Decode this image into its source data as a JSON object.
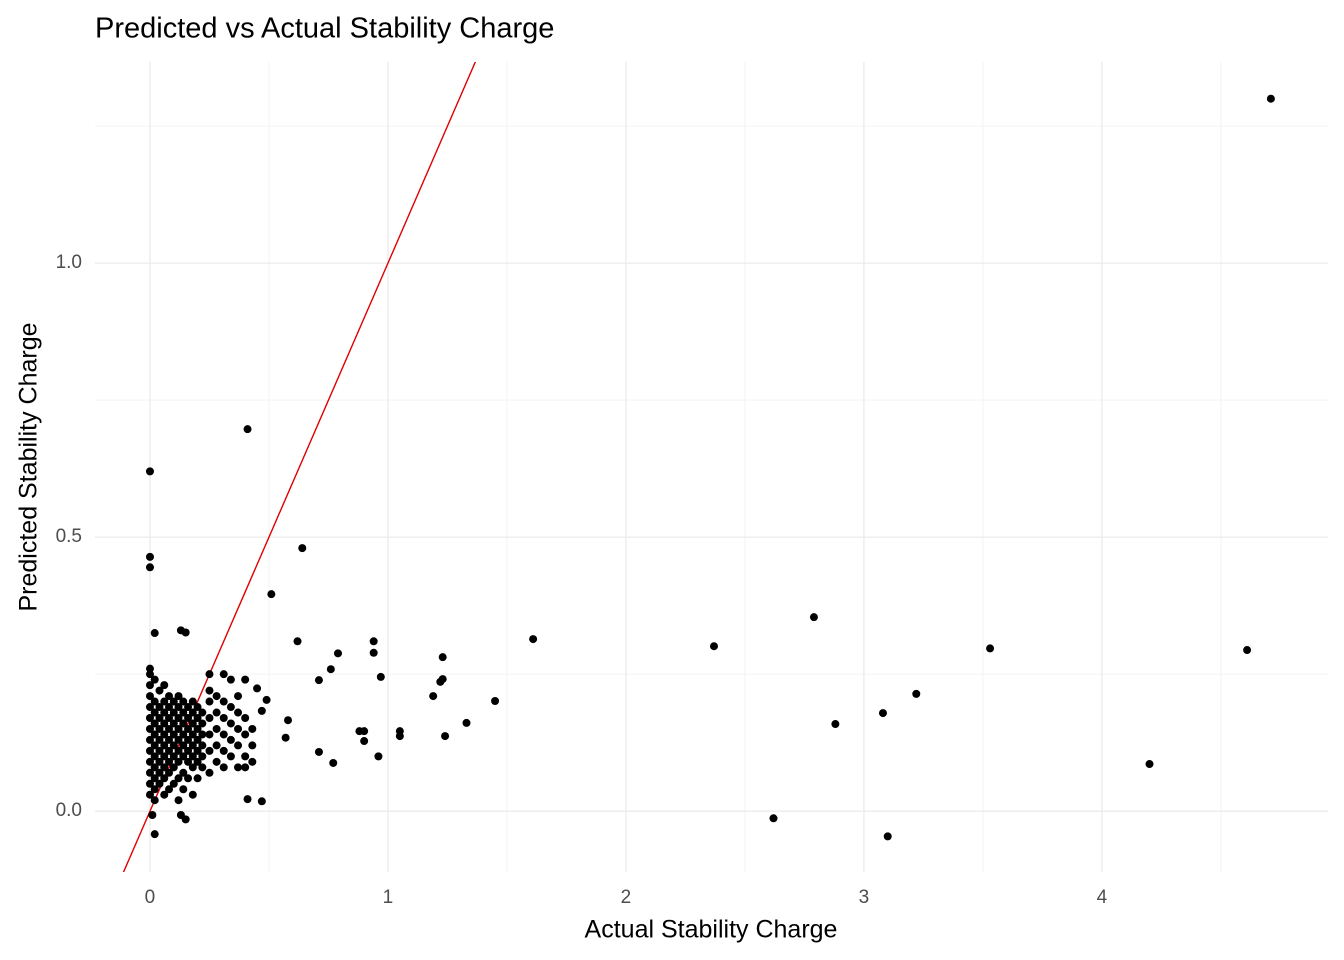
{
  "chart_data": {
    "type": "scatter",
    "title": "Predicted vs Actual Stability Charge",
    "x_label": "Actual Stability Charge",
    "y_label": "Predicted Stability Charge",
    "color": "#000000",
    "grid": true,
    "xlim": [
      -0.231,
      4.95
    ],
    "ylim": [
      -0.111,
      1.367
    ],
    "xticks": [
      0,
      1,
      2,
      3,
      4
    ],
    "yticks": [
      {
        "value": 0,
        "label": "0.0"
      },
      0.5,
      {
        "value": 1,
        "label": "1.0"
      }
    ],
    "x_minor_ticks": [
      0.5,
      1.5,
      2.5,
      3.5,
      4.5
    ],
    "y_minor_ticks": [
      0.25,
      0.75,
      1.25
    ],
    "reference_line": {
      "slope": 1,
      "intercept": 0,
      "color": "#e00000"
    },
    "x": [
      4.71,
      0.41,
      0,
      0,
      0,
      0.64,
      0.51,
      1.61,
      0.62,
      0.94,
      0.94,
      2.79,
      2.37,
      3.53,
      4.61,
      1.23,
      0.79,
      0.76,
      0.71,
      0.97,
      1.23,
      1.22,
      1.19,
      1.45,
      3.22,
      3.08,
      2.88,
      1.33,
      1.05,
      1.05,
      1.24,
      0.88,
      0.9,
      0.9,
      0.96,
      0.77,
      0.71,
      0.57,
      0.58,
      0.49,
      0.47,
      0.45,
      0.47,
      0.41,
      4.2,
      2.62,
      3.1,
      0.02,
      0.01,
      0.13,
      0.15,
      0.02,
      0.13,
      0.15,
      0,
      0,
      0,
      0,
      0,
      0,
      0,
      0,
      0,
      0,
      0,
      0,
      0,
      0.02,
      0.02,
      0.02,
      0.02,
      0.02,
      0.02,
      0.02,
      0.02,
      0.02,
      0.02,
      0.02,
      0.04,
      0.04,
      0.04,
      0.04,
      0.04,
      0.04,
      0.04,
      0.04,
      0.04,
      0.06,
      0.06,
      0.06,
      0.06,
      0.06,
      0.06,
      0.06,
      0.06,
      0.06,
      0.06,
      0.08,
      0.08,
      0.08,
      0.08,
      0.08,
      0.08,
      0.08,
      0.08,
      0.08,
      0.1,
      0.1,
      0.1,
      0.1,
      0.1,
      0.1,
      0.1,
      0.1,
      0.12,
      0.12,
      0.12,
      0.12,
      0.12,
      0.12,
      0.12,
      0.12,
      0.12,
      0.14,
      0.14,
      0.14,
      0.14,
      0.14,
      0.14,
      0.14,
      0.14,
      0.16,
      0.16,
      0.16,
      0.16,
      0.16,
      0.16,
      0.16,
      0.18,
      0.18,
      0.18,
      0.18,
      0.18,
      0.18,
      0.18,
      0.18,
      0.2,
      0.2,
      0.2,
      0.2,
      0.2,
      0.2,
      0.2,
      0.22,
      0.22,
      0.22,
      0.22,
      0.22,
      0.22,
      0.25,
      0.25,
      0.25,
      0.25,
      0.25,
      0.25,
      0.25,
      0.28,
      0.28,
      0.28,
      0.28,
      0.28,
      0.31,
      0.31,
      0.31,
      0.31,
      0.31,
      0.31,
      0.34,
      0.34,
      0.34,
      0.34,
      0.34,
      0.37,
      0.37,
      0.37,
      0.37,
      0.37,
      0.4,
      0.4,
      0.4,
      0.4,
      0.4,
      0.43,
      0.43,
      0.43
    ],
    "values": [
      1.3,
      0.697,
      0.62,
      0.464,
      0.445,
      0.48,
      0.396,
      0.314,
      0.31,
      0.31,
      0.289,
      0.354,
      0.301,
      0.297,
      0.294,
      0.281,
      0.288,
      0.259,
      0.239,
      0.245,
      0.241,
      0.236,
      0.21,
      0.201,
      0.214,
      0.179,
      0.159,
      0.161,
      0.146,
      0.137,
      0.137,
      0.146,
      0.146,
      0.128,
      0.1,
      0.088,
      0.108,
      0.134,
      0.166,
      0.203,
      0.183,
      0.224,
      0.018,
      0.022,
      0.086,
      -0.013,
      -0.046,
      -0.042,
      -0.007,
      -0.007,
      -0.015,
      0.325,
      0.33,
      0.326,
      0.26,
      0.25,
      0.23,
      0.21,
      0.19,
      0.17,
      0.15,
      0.13,
      0.11,
      0.09,
      0.07,
      0.05,
      0.03,
      0.24,
      0.2,
      0.18,
      0.16,
      0.14,
      0.12,
      0.1,
      0.08,
      0.06,
      0.04,
      0.02,
      0.22,
      0.19,
      0.17,
      0.15,
      0.13,
      0.11,
      0.09,
      0.07,
      0.05,
      0.23,
      0.2,
      0.18,
      0.16,
      0.14,
      0.12,
      0.1,
      0.08,
      0.06,
      0.03,
      0.21,
      0.19,
      0.17,
      0.15,
      0.13,
      0.11,
      0.09,
      0.07,
      0.04,
      0.2,
      0.18,
      0.16,
      0.14,
      0.12,
      0.1,
      0.08,
      0.05,
      0.21,
      0.19,
      0.17,
      0.15,
      0.13,
      0.11,
      0.09,
      0.06,
      0.02,
      0.2,
      0.18,
      0.16,
      0.14,
      0.12,
      0.1,
      0.07,
      0.04,
      0.19,
      0.17,
      0.15,
      0.13,
      0.11,
      0.09,
      0.06,
      0.2,
      0.18,
      0.16,
      0.14,
      0.12,
      0.1,
      0.08,
      0.03,
      0.19,
      0.17,
      0.15,
      0.13,
      0.11,
      0.09,
      0.06,
      0.18,
      0.16,
      0.14,
      0.12,
      0.1,
      0.08,
      0.25,
      0.22,
      0.2,
      0.17,
      0.14,
      0.11,
      0.07,
      0.21,
      0.18,
      0.15,
      0.12,
      0.09,
      0.25,
      0.2,
      0.17,
      0.14,
      0.11,
      0.08,
      0.24,
      0.19,
      0.16,
      0.13,
      0.1,
      0.21,
      0.18,
      0.15,
      0.12,
      0.08,
      0.24,
      0.17,
      0.14,
      0.1,
      0.08,
      0.15,
      0.12,
      0.09
    ]
  }
}
